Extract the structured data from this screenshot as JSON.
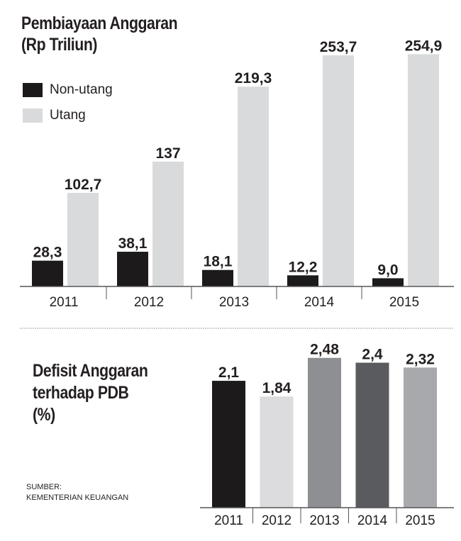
{
  "chart_data": [
    {
      "type": "bar",
      "title": "Pembiayaan Anggaran",
      "subtitle": "(Rp Triliun)",
      "categories": [
        "2011",
        "2012",
        "2013",
        "2014",
        "2015"
      ],
      "series": [
        {
          "name": "Non-utang",
          "color": "#1c1a1b",
          "values": [
            28.3,
            38.1,
            18.1,
            12.2,
            9.0
          ],
          "labels": [
            "28,3",
            "38,1",
            "18,1",
            "12,2",
            "9,0"
          ]
        },
        {
          "name": "Utang",
          "color": "#d9dadc",
          "values": [
            102.7,
            137,
            219.3,
            253.7,
            254.9
          ],
          "labels": [
            "102,7",
            "137",
            "219,3",
            "253,7",
            "254,9"
          ]
        }
      ],
      "legend": "top-left",
      "grid": false
    },
    {
      "type": "bar",
      "title_lines": [
        "Defisit Anggaran",
        "terhadap PDB",
        "(%)"
      ],
      "categories": [
        "2011",
        "2012",
        "2013",
        "2014",
        "2015"
      ],
      "values": [
        2.1,
        1.84,
        2.48,
        2.4,
        2.32
      ],
      "labels": [
        "2,1",
        "1,84",
        "2,48",
        "2,4",
        "2,32"
      ],
      "colors": [
        "#1c1a1b",
        "#dcdcde",
        "#8e8f93",
        "#5a5b5e",
        "#a8a9ad"
      ],
      "grid": false
    }
  ],
  "source": {
    "line1": "SUMBER:",
    "line2": "KEMENTERIAN KEUANGAN"
  }
}
